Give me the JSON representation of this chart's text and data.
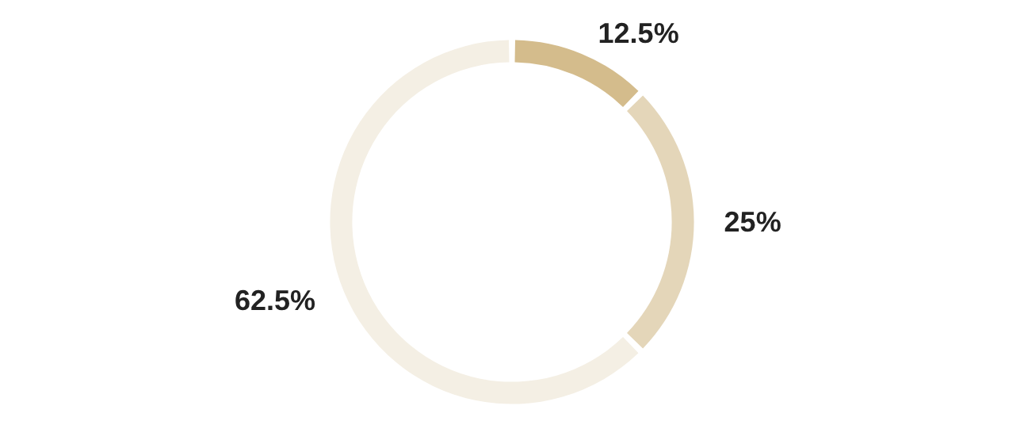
{
  "chart_data": {
    "type": "donut",
    "categories": [
      null,
      null,
      null
    ],
    "values": [
      12.5,
      25,
      62.5
    ],
    "colors": [
      "#d4bc8c",
      "#e4d6b9",
      "#f4efe4"
    ],
    "value_labels": [
      "12.5%",
      "25%",
      "62.5%"
    ]
  }
}
